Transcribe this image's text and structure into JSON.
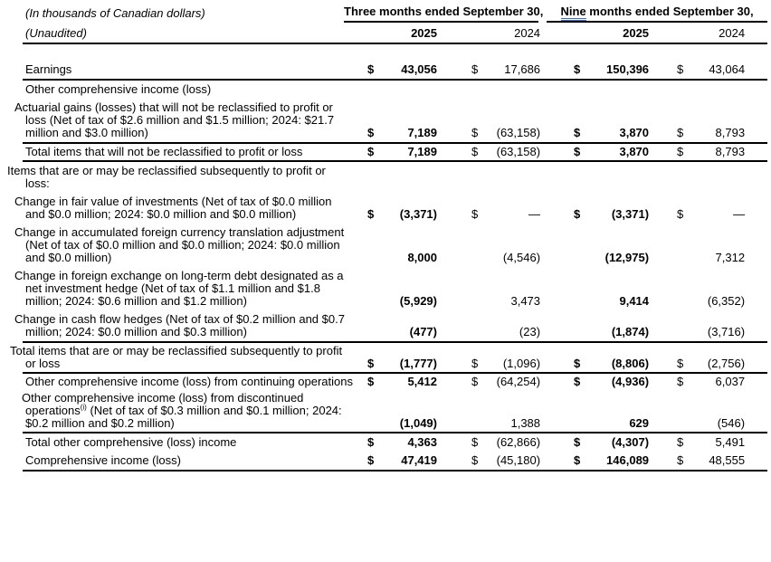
{
  "meta": {
    "currency_note": "(In thousands of Canadian dollars)",
    "unaudited_note": "(Unaudited)"
  },
  "header": {
    "group1": "Three months ended September 30,",
    "group2_word": "Nine",
    "group2_rest": " months ended September 30,",
    "years": [
      "2025",
      "2024",
      "2025",
      "2024"
    ],
    "grammar_underline_color": "#3b6fd4",
    "rule_color": "#000000"
  },
  "rows": [
    {
      "name": "earnings",
      "indent": "a",
      "gap": "lg",
      "rule_below": true,
      "label": "Earnings",
      "cells": [
        "$",
        "43,056",
        "$",
        "17,686",
        "$",
        "150,396",
        "$",
        "43,064"
      ]
    },
    {
      "name": "oci-section-header",
      "indent": "a",
      "label": "Other comprehensive income (loss)"
    },
    {
      "name": "actuarial-gains-losses",
      "indent": "b",
      "rule_below": true,
      "label": "Actuarial gains (losses) that will not be reclassified to profit or loss (Net of tax of $2.6 million and $1.5 million; 2024: $21.7 million and $3.0 million)",
      "cells": [
        "$",
        "7,189",
        "$",
        "(63,158)",
        "$",
        "3,870",
        "$",
        "8,793"
      ]
    },
    {
      "name": "total-not-reclassified",
      "indent": "a",
      "rule_below": true,
      "tight": true,
      "label": "Total items that will not be reclassified to profit or loss",
      "cells": [
        "$",
        "7,189",
        "$",
        "(63,158)",
        "$",
        "3,870",
        "$",
        "8,793"
      ]
    },
    {
      "name": "items-reclassifiable-header",
      "indent": "c",
      "label": "Items that are or may be reclassified subsequently to profit or loss:"
    },
    {
      "name": "fair-value-investments",
      "indent": "d",
      "label": "Change in fair value of investments (Net of tax of $0.0 million and $0.0 million; 2024: $0.0 million and $0.0 million)",
      "cells": [
        "$",
        "(3,371)",
        "$",
        "—",
        "$",
        "(3,371)",
        "$",
        "—"
      ]
    },
    {
      "name": "fx-translation-adjustment",
      "indent": "d",
      "label": "Change in accumulated foreign currency translation adjustment (Net of tax of $0.0 million and $0.0 million; 2024: $0.0 million and $0.0 million)",
      "cells": [
        "",
        "8,000",
        "",
        "(4,546)",
        "",
        "(12,975)",
        "",
        "7,312"
      ]
    },
    {
      "name": "net-investment-hedge",
      "indent": "d",
      "label": "Change in foreign exchange on long-term debt designated as a net investment hedge (Net of tax of $1.1 million and $1.8 million; 2024: $0.6 million and $1.2 million)",
      "cells": [
        "",
        "(5,929)",
        "",
        "3,473",
        "",
        "9,414",
        "",
        "(6,352)"
      ]
    },
    {
      "name": "cash-flow-hedges",
      "indent": "d",
      "rule_below": true,
      "label": "Change in cash flow hedges (Net of tax of $0.2 million and $0.7 million; 2024: $0.0 million and $0.3 million)",
      "cells": [
        "",
        "(477)",
        "",
        "(23)",
        "",
        "(1,874)",
        "",
        "(3,716)"
      ]
    },
    {
      "name": "total-reclassifiable",
      "indent": "e",
      "rule_below": true,
      "tight": true,
      "label": "Total items that are or may be reclassified subsequently to profit or loss",
      "cells": [
        "$",
        "(1,777)",
        "$",
        "(1,096)",
        "$",
        "(8,806)",
        "$",
        "(2,756)"
      ]
    },
    {
      "name": "oci-continuing-operations",
      "indent": "f",
      "tight": true,
      "label": "Other comprehensive income (loss) from continuing operations",
      "cells": [
        "$",
        "5,412",
        "$",
        "(64,254)",
        "$",
        "(4,936)",
        "$",
        "6,037"
      ]
    },
    {
      "name": "oci-discontinued-operations",
      "indent": "g",
      "rule_below": true,
      "tight": true,
      "label": "Other comprehensive income (loss) from discontinued operations",
      "sup": "(i)",
      "label2": " (Net of tax of $0.3 million and $0.1 million; 2024: $0.2 million and $0.2 million)",
      "cells": [
        "",
        "(1,049)",
        "",
        "1,388",
        "",
        "629",
        "",
        "(546)"
      ]
    },
    {
      "name": "total-oci",
      "indent": "h",
      "label": "Total other comprehensive (loss) income",
      "cells": [
        "$",
        "4,363",
        "$",
        "(62,866)",
        "$",
        "(4,307)",
        "$",
        "5,491"
      ]
    },
    {
      "name": "comprehensive-income",
      "indent": "h",
      "rule_below": true,
      "label": "Comprehensive income (loss)",
      "cells": [
        "$",
        "47,419",
        "$",
        "(45,180)",
        "$",
        "146,089",
        "$",
        "48,555"
      ]
    }
  ]
}
